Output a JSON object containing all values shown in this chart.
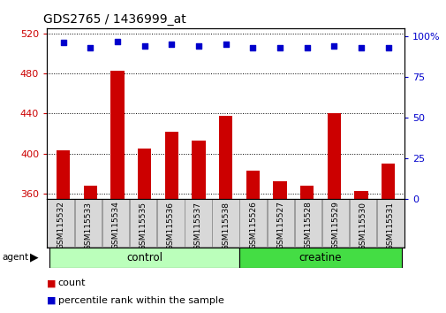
{
  "title": "GDS2765 / 1436999_at",
  "samples": [
    "GSM115532",
    "GSM115533",
    "GSM115534",
    "GSM115535",
    "GSM115536",
    "GSM115537",
    "GSM115538",
    "GSM115526",
    "GSM115527",
    "GSM115528",
    "GSM115529",
    "GSM115530",
    "GSM115531"
  ],
  "counts": [
    403,
    368,
    483,
    405,
    422,
    413,
    438,
    383,
    372,
    368,
    440,
    363,
    390
  ],
  "percentiles": [
    96,
    93,
    97,
    94,
    95,
    94,
    95,
    93,
    93,
    93,
    94,
    93,
    93
  ],
  "groups": [
    {
      "label": "control",
      "start": 0,
      "end": 7,
      "color": "#bbffbb"
    },
    {
      "label": "creatine",
      "start": 7,
      "end": 13,
      "color": "#44dd44"
    }
  ],
  "ylim_left": [
    355,
    525
  ],
  "yticks_left": [
    360,
    400,
    440,
    480,
    520
  ],
  "ylim_right": [
    0,
    105
  ],
  "yticks_right": [
    0,
    25,
    50,
    75,
    100
  ],
  "bar_color": "#cc0000",
  "dot_color": "#0000cc",
  "bar_width": 0.5,
  "agent_label": "agent",
  "legend_count_label": "count",
  "legend_percentile_label": "percentile rank within the sample",
  "bar_bottom": 355,
  "xlabel_color": "#cc0000",
  "ylabel_right_color": "#0000cc"
}
